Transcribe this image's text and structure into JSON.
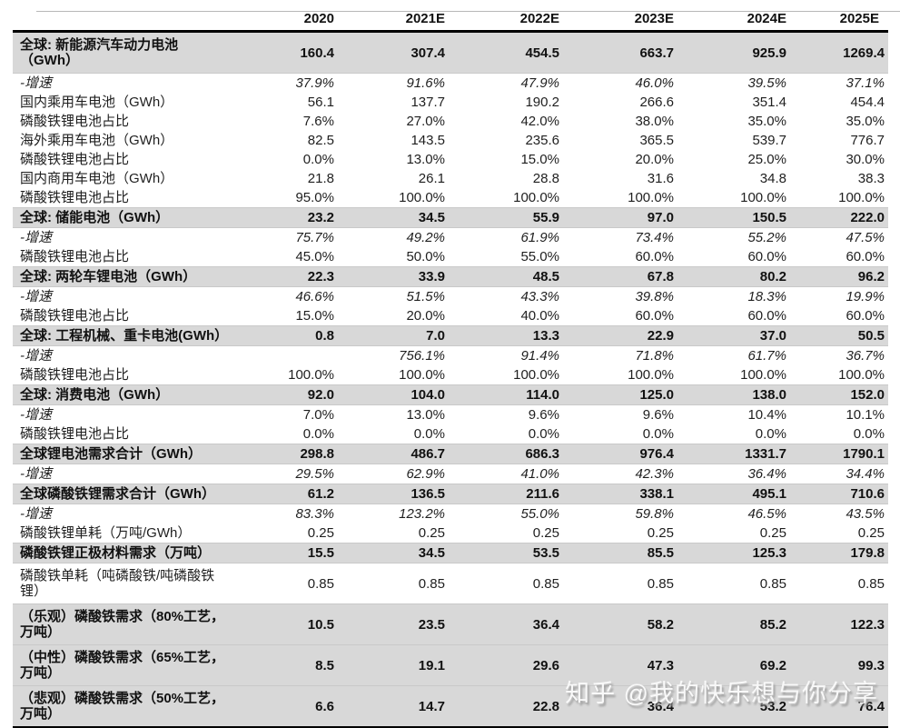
{
  "watermark": {
    "text": "知乎 @我的快乐想与你分享"
  },
  "colors": {
    "section_row_bg": "#d8d8d8",
    "text": "#1f1f1f",
    "rule": "#000000",
    "watermark_text": "#fbfbfb"
  },
  "table": {
    "columns": [
      "2020",
      "2021E",
      "2022E",
      "2023E",
      "2024E",
      "2025E"
    ],
    "rows": [
      {
        "style": "section",
        "label": "全球: 新能源汽车动力电池\n（GWh）",
        "values": [
          "160.4",
          "307.4",
          "454.5",
          "663.7",
          "925.9",
          "1269.4"
        ]
      },
      {
        "style": "growth",
        "label": "-增速",
        "values": [
          "37.9%",
          "91.6%",
          "47.9%",
          "46.0%",
          "39.5%",
          "37.1%"
        ]
      },
      {
        "style": "plain",
        "label": "国内乘用车电池（GWh）",
        "values": [
          "56.1",
          "137.7",
          "190.2",
          "266.6",
          "351.4",
          "454.4"
        ]
      },
      {
        "style": "plain",
        "label": "磷酸铁锂电池占比",
        "values": [
          "7.6%",
          "27.0%",
          "42.0%",
          "38.0%",
          "35.0%",
          "35.0%"
        ]
      },
      {
        "style": "plain",
        "label": "海外乘用车电池（GWh）",
        "values": [
          "82.5",
          "143.5",
          "235.6",
          "365.5",
          "539.7",
          "776.7"
        ]
      },
      {
        "style": "plain",
        "label": "磷酸铁锂电池占比",
        "values": [
          "0.0%",
          "13.0%",
          "15.0%",
          "20.0%",
          "25.0%",
          "30.0%"
        ]
      },
      {
        "style": "plain",
        "label": "国内商用车电池（GWh）",
        "values": [
          "21.8",
          "26.1",
          "28.8",
          "31.6",
          "34.8",
          "38.3"
        ]
      },
      {
        "style": "plain",
        "label": "磷酸铁锂电池占比",
        "values": [
          "95.0%",
          "100.0%",
          "100.0%",
          "100.0%",
          "100.0%",
          "100.0%"
        ]
      },
      {
        "style": "section",
        "label": "全球: 储能电池（GWh）",
        "values": [
          "23.2",
          "34.5",
          "55.9",
          "97.0",
          "150.5",
          "222.0"
        ]
      },
      {
        "style": "growth",
        "label": "-增速",
        "values": [
          "75.7%",
          "49.2%",
          "61.9%",
          "73.4%",
          "55.2%",
          "47.5%"
        ]
      },
      {
        "style": "plain",
        "label": "磷酸铁锂电池占比",
        "values": [
          "45.0%",
          "50.0%",
          "55.0%",
          "60.0%",
          "60.0%",
          "60.0%"
        ]
      },
      {
        "style": "section",
        "label": "全球: 两轮车锂电池（GWh）",
        "values": [
          "22.3",
          "33.9",
          "48.5",
          "67.8",
          "80.2",
          "96.2"
        ]
      },
      {
        "style": "growth",
        "label": "-增速",
        "values": [
          "46.6%",
          "51.5%",
          "43.3%",
          "39.8%",
          "18.3%",
          "19.9%"
        ]
      },
      {
        "style": "plain",
        "label": "磷酸铁锂电池占比",
        "values": [
          "15.0%",
          "20.0%",
          "40.0%",
          "60.0%",
          "60.0%",
          "60.0%"
        ]
      },
      {
        "style": "section",
        "label": "全球: 工程机械、重卡电池(GWh）",
        "values": [
          "0.8",
          "7.0",
          "13.3",
          "22.9",
          "37.0",
          "50.5"
        ]
      },
      {
        "style": "growth",
        "label": "-增速",
        "values": [
          "",
          "756.1%",
          "91.4%",
          "71.8%",
          "61.7%",
          "36.7%"
        ]
      },
      {
        "style": "plain",
        "label": "磷酸铁锂电池占比",
        "values": [
          "100.0%",
          "100.0%",
          "100.0%",
          "100.0%",
          "100.0%",
          "100.0%"
        ]
      },
      {
        "style": "section",
        "label": "全球: 消费电池（GWh）",
        "values": [
          "92.0",
          "104.0",
          "114.0",
          "125.0",
          "138.0",
          "152.0"
        ]
      },
      {
        "style": "growth_upright",
        "label": "-增速",
        "values": [
          "7.0%",
          "13.0%",
          "9.6%",
          "9.6%",
          "10.4%",
          "10.1%"
        ]
      },
      {
        "style": "plain",
        "label": "磷酸铁锂电池占比",
        "values": [
          "0.0%",
          "0.0%",
          "0.0%",
          "0.0%",
          "0.0%",
          "0.0%"
        ]
      },
      {
        "style": "section",
        "label": "全球锂电池需求合计（GWh）",
        "values": [
          "298.8",
          "486.7",
          "686.3",
          "976.4",
          "1331.7",
          "1790.1"
        ]
      },
      {
        "style": "growth",
        "label": "-增速",
        "values": [
          "29.5%",
          "62.9%",
          "41.0%",
          "42.3%",
          "36.4%",
          "34.4%"
        ]
      },
      {
        "style": "section",
        "label": "全球磷酸铁锂需求合计（GWh）",
        "values": [
          "61.2",
          "136.5",
          "211.6",
          "338.1",
          "495.1",
          "710.6"
        ]
      },
      {
        "style": "growth",
        "label": "-增速",
        "values": [
          "83.3%",
          "123.2%",
          "55.0%",
          "59.8%",
          "46.5%",
          "43.5%"
        ]
      },
      {
        "style": "plain",
        "label": "磷酸铁锂单耗（万吨/GWh）",
        "values": [
          "0.25",
          "0.25",
          "0.25",
          "0.25",
          "0.25",
          "0.25"
        ]
      },
      {
        "style": "section",
        "label": "磷酸铁锂正极材料需求（万吨）",
        "values": [
          "15.5",
          "34.5",
          "53.5",
          "85.5",
          "125.3",
          "179.8"
        ]
      },
      {
        "style": "plain",
        "label": "磷酸铁单耗（吨磷酸铁/吨磷酸铁\n锂）",
        "values": [
          "0.85",
          "0.85",
          "0.85",
          "0.85",
          "0.85",
          "0.85"
        ]
      },
      {
        "style": "section",
        "label": "（乐观）磷酸铁需求（80%工艺，\n万吨）",
        "values": [
          "10.5",
          "23.5",
          "36.4",
          "58.2",
          "85.2",
          "122.3"
        ]
      },
      {
        "style": "section",
        "label": "（中性）磷酸铁需求（65%工艺，\n万吨）",
        "values": [
          "8.5",
          "19.1",
          "29.6",
          "47.3",
          "69.2",
          "99.3"
        ]
      },
      {
        "style": "section",
        "label": "（悲观）磷酸铁需求（50%工艺，\n万吨）",
        "values": [
          "6.6",
          "14.7",
          "22.8",
          "36.4",
          "53.2",
          "76.4"
        ]
      }
    ]
  }
}
